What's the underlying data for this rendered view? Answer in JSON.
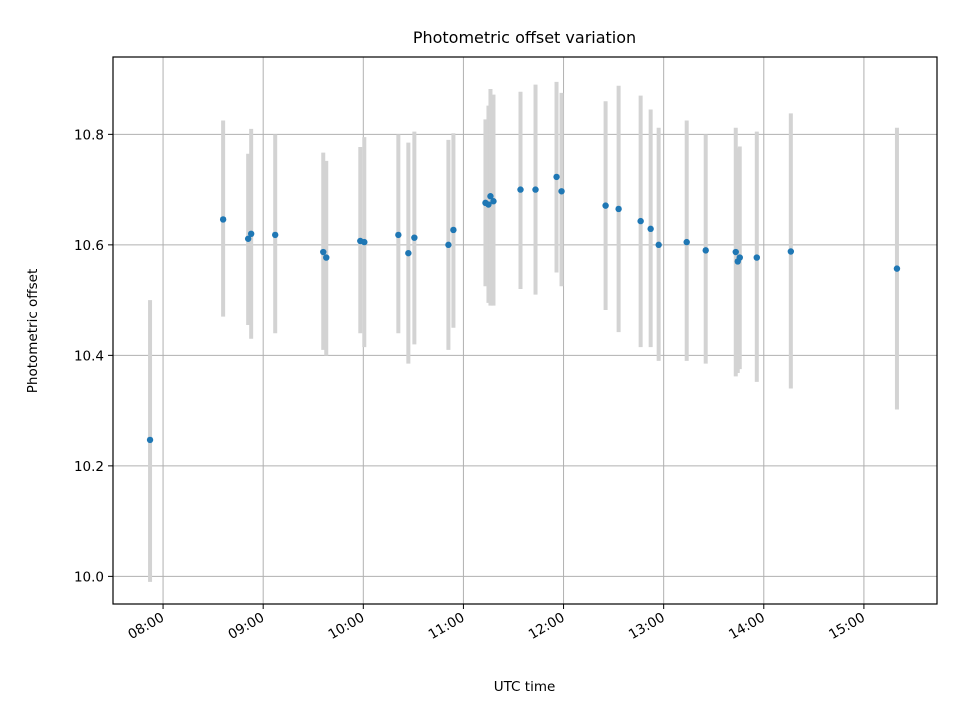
{
  "chart_data": {
    "type": "scatter",
    "title": "Photometric offset variation",
    "xlabel": "UTC time",
    "ylabel": "Photometric offset",
    "x_unit": "hours (UTC)",
    "xlim": [
      7.5,
      15.73
    ],
    "ylim": [
      9.95,
      10.94
    ],
    "grid": true,
    "xtick_labels": [
      {
        "value": 8,
        "label": "08:00"
      },
      {
        "value": 9,
        "label": "09:00"
      },
      {
        "value": 10,
        "label": "10:00"
      },
      {
        "value": 11,
        "label": "11:00"
      },
      {
        "value": 12,
        "label": "12:00"
      },
      {
        "value": 13,
        "label": "13:00"
      },
      {
        "value": 14,
        "label": "14:00"
      },
      {
        "value": 15,
        "label": "15:00"
      }
    ],
    "ytick_labels": [
      {
        "value": 10.0,
        "label": "10.0"
      },
      {
        "value": 10.2,
        "label": "10.2"
      },
      {
        "value": 10.4,
        "label": "10.4"
      },
      {
        "value": 10.6,
        "label": "10.6"
      },
      {
        "value": 10.8,
        "label": "10.8"
      }
    ],
    "colors": {
      "points": "#1f77b4",
      "error_bars": "#d3d3d3",
      "grid": "#b0b0b0"
    },
    "points": [
      {
        "x": 7.87,
        "y": 10.247,
        "ylow": 9.99,
        "yhigh": 10.5
      },
      {
        "x": 8.6,
        "y": 10.646,
        "ylow": 10.47,
        "yhigh": 10.825
      },
      {
        "x": 8.85,
        "y": 10.611,
        "ylow": 10.455,
        "yhigh": 10.765
      },
      {
        "x": 8.88,
        "y": 10.62,
        "ylow": 10.43,
        "yhigh": 10.81
      },
      {
        "x": 9.12,
        "y": 10.618,
        "ylow": 10.44,
        "yhigh": 10.8
      },
      {
        "x": 9.6,
        "y": 10.587,
        "ylow": 10.41,
        "yhigh": 10.767
      },
      {
        "x": 9.63,
        "y": 10.577,
        "ylow": 10.4,
        "yhigh": 10.752
      },
      {
        "x": 9.97,
        "y": 10.607,
        "ylow": 10.44,
        "yhigh": 10.777
      },
      {
        "x": 10.01,
        "y": 10.605,
        "ylow": 10.415,
        "yhigh": 10.795
      },
      {
        "x": 10.35,
        "y": 10.618,
        "ylow": 10.44,
        "yhigh": 10.8
      },
      {
        "x": 10.45,
        "y": 10.585,
        "ylow": 10.385,
        "yhigh": 10.785
      },
      {
        "x": 10.51,
        "y": 10.613,
        "ylow": 10.42,
        "yhigh": 10.805
      },
      {
        "x": 10.85,
        "y": 10.6,
        "ylow": 10.41,
        "yhigh": 10.79
      },
      {
        "x": 10.9,
        "y": 10.627,
        "ylow": 10.45,
        "yhigh": 10.802
      },
      {
        "x": 11.22,
        "y": 10.676,
        "ylow": 10.525,
        "yhigh": 10.827
      },
      {
        "x": 11.25,
        "y": 10.673,
        "ylow": 10.495,
        "yhigh": 10.852
      },
      {
        "x": 11.27,
        "y": 10.688,
        "ylow": 10.49,
        "yhigh": 10.882
      },
      {
        "x": 11.3,
        "y": 10.679,
        "ylow": 10.49,
        "yhigh": 10.872
      },
      {
        "x": 11.57,
        "y": 10.7,
        "ylow": 10.52,
        "yhigh": 10.877
      },
      {
        "x": 11.72,
        "y": 10.7,
        "ylow": 10.51,
        "yhigh": 10.89
      },
      {
        "x": 11.93,
        "y": 10.723,
        "ylow": 10.55,
        "yhigh": 10.895
      },
      {
        "x": 11.98,
        "y": 10.697,
        "ylow": 10.525,
        "yhigh": 10.875
      },
      {
        "x": 12.42,
        "y": 10.671,
        "ylow": 10.482,
        "yhigh": 10.86
      },
      {
        "x": 12.55,
        "y": 10.665,
        "ylow": 10.442,
        "yhigh": 10.888
      },
      {
        "x": 12.77,
        "y": 10.643,
        "ylow": 10.415,
        "yhigh": 10.87
      },
      {
        "x": 12.87,
        "y": 10.629,
        "ylow": 10.415,
        "yhigh": 10.845
      },
      {
        "x": 12.95,
        "y": 10.6,
        "ylow": 10.39,
        "yhigh": 10.812
      },
      {
        "x": 13.23,
        "y": 10.605,
        "ylow": 10.39,
        "yhigh": 10.825
      },
      {
        "x": 13.42,
        "y": 10.59,
        "ylow": 10.385,
        "yhigh": 10.8
      },
      {
        "x": 13.72,
        "y": 10.587,
        "ylow": 10.362,
        "yhigh": 10.812
      },
      {
        "x": 13.74,
        "y": 10.57,
        "ylow": 10.368,
        "yhigh": 10.775
      },
      {
        "x": 13.76,
        "y": 10.577,
        "ylow": 10.375,
        "yhigh": 10.778
      },
      {
        "x": 13.93,
        "y": 10.577,
        "ylow": 10.352,
        "yhigh": 10.805
      },
      {
        "x": 14.27,
        "y": 10.588,
        "ylow": 10.34,
        "yhigh": 10.838
      },
      {
        "x": 15.33,
        "y": 10.557,
        "ylow": 10.302,
        "yhigh": 10.812
      }
    ]
  }
}
